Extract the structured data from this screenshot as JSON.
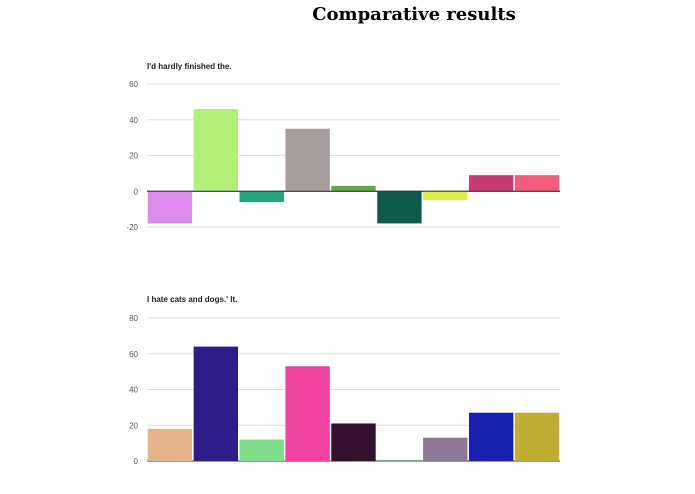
{
  "page": {
    "title": "Comparative results"
  },
  "chart_data": [
    {
      "type": "bar",
      "title": "I'd hardly finished the.",
      "xlabel": "",
      "ylabel": "",
      "ylim": [
        -20,
        60
      ],
      "yticks": [
        -20,
        0,
        20,
        40,
        60
      ],
      "grid": true,
      "values": [
        -18,
        46,
        -6,
        35,
        3,
        -18,
        -5,
        9,
        9
      ],
      "colors": [
        "#da8ae8",
        "#b0f07a",
        "#26a67e",
        "#a69d9b",
        "#5bab45",
        "#0f5a4c",
        "#ddee4a",
        "#c83a72",
        "#f55b7b"
      ]
    },
    {
      "type": "bar",
      "title": "I hate cats and dogs.' It.",
      "xlabel": "",
      "ylabel": "",
      "ylim": [
        0,
        80
      ],
      "yticks": [
        0,
        20,
        40,
        60,
        80
      ],
      "grid": true,
      "values": [
        18,
        64,
        12,
        53,
        21,
        0.5,
        13,
        27,
        27
      ],
      "colors": [
        "#e5b48e",
        "#2f1c86",
        "#7ede8a",
        "#f042a0",
        "#31112b",
        "#6e9b80",
        "#8c7794",
        "#1b1fb0",
        "#c0ab35"
      ]
    }
  ]
}
